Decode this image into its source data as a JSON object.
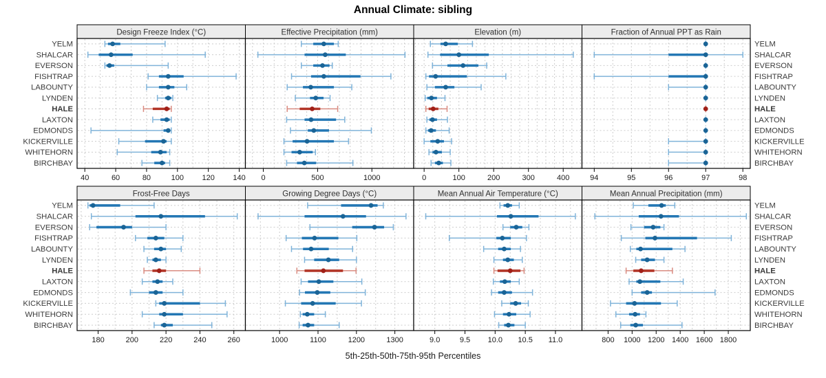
{
  "title": "Annual Climate: sibling",
  "footer": "5th-25th-50th-75th-95th Percentiles",
  "sites": [
    "YELM",
    "SHALCAR",
    "EVERSON",
    "FISHTRAP",
    "LABOUNTY",
    "LYNDEN",
    "HALE",
    "LAXTON",
    "EDMONDS",
    "KICKERVILLE",
    "WHITEHORN",
    "BIRCHBAY"
  ],
  "highlight_site": "HALE",
  "colors": {
    "blue_dot": "#1a6496",
    "blue_box": "#2377b4",
    "blue_whisker": "#7fb3d9",
    "red_dot": "#a02018",
    "red_box": "#b23527",
    "red_whisker": "#d98b80",
    "grid": "#cccccc",
    "header_bg": "#ececec",
    "header_text": "#303030",
    "site_label": "#3a3a3a",
    "tick_label": "#1a1a1a",
    "border": "#000000"
  },
  "chart_data": [
    {
      "type": "percentile_intervals",
      "id": "design-freeze-index",
      "row": 0,
      "col": 0,
      "title": "Design Freeze Index (°C)",
      "percentiles": [
        5,
        25,
        50,
        75,
        95
      ],
      "xlim": [
        35,
        144
      ],
      "ticks": [
        40,
        60,
        80,
        100,
        120,
        140
      ],
      "tick_labels": [
        "40",
        "60",
        "80",
        "100",
        "120",
        "140"
      ],
      "grid_step": 10,
      "values": {
        "YELM": [
          53,
          55,
          58,
          63,
          92
        ],
        "SHALCAR": [
          42,
          49,
          57,
          71,
          118
        ],
        "EVERSON": [
          53,
          54,
          56,
          59,
          94
        ],
        "FISHTRAP": [
          81,
          88,
          94,
          104,
          138
        ],
        "LABOUNTY": [
          80,
          88,
          94,
          98,
          106
        ],
        "LYNDEN": [
          87,
          92,
          94,
          96,
          97
        ],
        "HALE": [
          78,
          84,
          93,
          95,
          96
        ],
        "LAXTON": [
          84,
          89,
          93,
          95,
          96
        ],
        "EDMONDS": [
          44,
          91,
          94,
          95,
          96
        ],
        "KICKERVILLE": [
          62,
          79,
          91,
          93,
          96
        ],
        "WHITEHORN": [
          61,
          83,
          89,
          93,
          95
        ],
        "BIRCHBAY": [
          77,
          85,
          90,
          92,
          95
        ]
      }
    },
    {
      "type": "percentile_intervals",
      "id": "effective-precipitation",
      "row": 0,
      "col": 1,
      "title": "Effective Precipitation (mm)",
      "percentiles": [
        5,
        25,
        50,
        75,
        95
      ],
      "xlim": [
        -165,
        1385
      ],
      "ticks": [
        0,
        500,
        1000
      ],
      "tick_labels": [
        "0",
        "500",
        "1000"
      ],
      "grid_step": 100,
      "values": {
        "YELM": [
          350,
          460,
          557,
          650,
          690
        ],
        "SHALCAR": [
          -50,
          380,
          570,
          760,
          1305
        ],
        "EVERSON": [
          350,
          460,
          545,
          610,
          635
        ],
        "FISHTRAP": [
          260,
          440,
          557,
          895,
          1175
        ],
        "LABOUNTY": [
          220,
          365,
          437,
          650,
          815
        ],
        "LYNDEN": [
          295,
          430,
          483,
          555,
          615
        ],
        "HALE": [
          220,
          335,
          450,
          525,
          685
        ],
        "LAXTON": [
          215,
          380,
          440,
          670,
          750
        ],
        "EDMONDS": [
          250,
          410,
          465,
          605,
          995
        ],
        "KICKERVILLE": [
          190,
          270,
          403,
          650,
          785
        ],
        "WHITEHORN": [
          190,
          260,
          335,
          455,
          480
        ],
        "BIRCHBAY": [
          215,
          310,
          378,
          487,
          825
        ]
      }
    },
    {
      "type": "percentile_intervals",
      "id": "elevation",
      "row": 0,
      "col": 2,
      "title": "Elevation (m)",
      "percentiles": [
        5,
        25,
        50,
        75,
        95
      ],
      "xlim": [
        -30,
        454
      ],
      "ticks": [
        0,
        100,
        200,
        300,
        400
      ],
      "tick_labels": [
        "0",
        "100",
        "200",
        "300",
        "400"
      ],
      "grid_step": 25,
      "values": {
        "YELM": [
          18,
          47,
          62,
          97,
          139
        ],
        "SHALCAR": [
          11,
          46,
          100,
          186,
          429
        ],
        "EVERSON": [
          24,
          67,
          112,
          156,
          180
        ],
        "FISHTRAP": [
          5,
          14,
          33,
          123,
          235
        ],
        "LABOUNTY": [
          8,
          31,
          62,
          87,
          164
        ],
        "LYNDEN": [
          3,
          9,
          21,
          37,
          60
        ],
        "HALE": [
          5,
          13,
          26,
          41,
          66
        ],
        "LAXTON": [
          8,
          15,
          24,
          37,
          67
        ],
        "EDMONDS": [
          5,
          11,
          20,
          34,
          72
        ],
        "KICKERVILLE": [
          0,
          18,
          39,
          57,
          79
        ],
        "WHITEHORN": [
          14,
          24,
          34,
          51,
          75
        ],
        "BIRCHBAY": [
          20,
          31,
          42,
          54,
          77
        ]
      }
    },
    {
      "type": "percentile_intervals",
      "id": "fraction-ppt-rain",
      "row": 0,
      "col": 3,
      "title": "Fraction of Annual PPT as Rain",
      "percentiles": [
        5,
        25,
        50,
        75,
        95
      ],
      "xlim": [
        93.67,
        98.2
      ],
      "ticks": [
        94,
        95,
        96,
        97,
        98
      ],
      "tick_labels": [
        "94",
        "95",
        "96",
        "97",
        "98"
      ],
      "grid_step": 0.5,
      "values": {
        "YELM": [
          97,
          97,
          97,
          97,
          97
        ],
        "SHALCAR": [
          94,
          96,
          97,
          97,
          98
        ],
        "EVERSON": [
          97,
          97,
          97,
          97,
          97
        ],
        "FISHTRAP": [
          94,
          96,
          97,
          97,
          97
        ],
        "LABOUNTY": [
          96,
          97,
          97,
          97,
          97
        ],
        "LYNDEN": [
          97,
          97,
          97,
          97,
          97
        ],
        "HALE": [
          97,
          97,
          97,
          97,
          97
        ],
        "LAXTON": [
          97,
          97,
          97,
          97,
          97
        ],
        "EDMONDS": [
          97,
          97,
          97,
          97,
          97
        ],
        "KICKERVILLE": [
          96,
          97,
          97,
          97,
          97
        ],
        "WHITEHORN": [
          96,
          97,
          97,
          97,
          97
        ],
        "BIRCHBAY": [
          96,
          97,
          97,
          97,
          97
        ]
      }
    },
    {
      "type": "percentile_intervals",
      "id": "frost-free-days",
      "row": 1,
      "col": 0,
      "title": "Frost-Free Days",
      "percentiles": [
        5,
        25,
        50,
        75,
        95
      ],
      "xlim": [
        167.6,
        266.8
      ],
      "ticks": [
        180,
        200,
        220,
        240,
        260
      ],
      "tick_labels": [
        "180",
        "200",
        "220",
        "240",
        "260"
      ],
      "grid_step": 10,
      "values": {
        "YELM": [
          174,
          175,
          177,
          193,
          213
        ],
        "SHALCAR": [
          176,
          202,
          217,
          243,
          262
        ],
        "EVERSON": [
          175,
          179,
          195,
          200,
          220
        ],
        "FISHTRAP": [
          202,
          209,
          214,
          219,
          230
        ],
        "LABOUNTY": [
          207,
          213,
          217,
          220,
          229
        ],
        "LYNDEN": [
          209,
          212,
          214,
          217,
          220
        ],
        "HALE": [
          207,
          212,
          216,
          220,
          240
        ],
        "LAXTON": [
          206,
          212,
          215,
          218,
          224
        ],
        "EDMONDS": [
          199,
          210,
          214,
          218,
          230
        ],
        "KICKERVILLE": [
          214,
          216,
          219,
          240,
          255
        ],
        "WHITEHORN": [
          206,
          216,
          219,
          230,
          256
        ],
        "BIRCHBAY": [
          213,
          217,
          219,
          224,
          247
        ]
      }
    },
    {
      "type": "percentile_intervals",
      "id": "growing-degree-days",
      "row": 1,
      "col": 1,
      "title": "Growing Degree Days (°C)",
      "percentiles": [
        5,
        25,
        50,
        75,
        95
      ],
      "xlim": [
        911,
        1349
      ],
      "ticks": [
        1000,
        1100,
        1200,
        1300
      ],
      "tick_labels": [
        "1000",
        "1100",
        "1200",
        "1300"
      ],
      "grid_step": 50,
      "values": {
        "YELM": [
          1073,
          1160,
          1238,
          1255,
          1270
        ],
        "SHALCAR": [
          944,
          1065,
          1165,
          1225,
          1329
        ],
        "EVERSON": [
          1079,
          1189,
          1247,
          1272,
          1296
        ],
        "FISHTRAP": [
          1017,
          1058,
          1091,
          1153,
          1201
        ],
        "LABOUNTY": [
          1031,
          1061,
          1082,
          1128,
          1190
        ],
        "LYNDEN": [
          1065,
          1090,
          1127,
          1155,
          1200
        ],
        "HALE": [
          1045,
          1065,
          1114,
          1165,
          1199
        ],
        "LAXTON": [
          1056,
          1074,
          1102,
          1140,
          1214
        ],
        "EDMONDS": [
          1052,
          1066,
          1098,
          1132,
          1223
        ],
        "KICKERVILLE": [
          1015,
          1056,
          1086,
          1146,
          1213
        ],
        "WHITEHORN": [
          1054,
          1060,
          1072,
          1090,
          1119
        ],
        "BIRCHBAY": [
          1051,
          1060,
          1074,
          1090,
          1155
        ]
      }
    },
    {
      "type": "percentile_intervals",
      "id": "mean-annual-air-temperature",
      "row": 1,
      "col": 2,
      "title": "Mean Annual Air Temperature (°C)",
      "percentiles": [
        5,
        25,
        50,
        75,
        95
      ],
      "xlim": [
        8.65,
        11.44
      ],
      "ticks": [
        9.0,
        9.5,
        10.0,
        10.5,
        11.0
      ],
      "tick_labels": [
        "9.0",
        "9.5",
        "10.0",
        "10.5",
        "11.0"
      ],
      "grid_step": 0.25,
      "values": {
        "YELM": [
          10.08,
          10.14,
          10.21,
          10.28,
          10.4
        ],
        "SHALCAR": [
          8.85,
          10.03,
          10.26,
          10.72,
          11.33
        ],
        "EVERSON": [
          10.13,
          10.25,
          10.35,
          10.45,
          10.56
        ],
        "FISHTRAP": [
          9.24,
          10.02,
          10.12,
          10.26,
          10.52
        ],
        "LABOUNTY": [
          9.81,
          10.05,
          10.15,
          10.26,
          10.42
        ],
        "LYNDEN": [
          9.98,
          10.13,
          10.21,
          10.31,
          10.45
        ],
        "HALE": [
          9.98,
          10.04,
          10.25,
          10.42,
          10.48
        ],
        "LAXTON": [
          9.97,
          10.08,
          10.16,
          10.26,
          10.4
        ],
        "EDMONDS": [
          9.94,
          10.05,
          10.15,
          10.28,
          10.62
        ],
        "KICKERVILLE": [
          10.11,
          10.25,
          10.34,
          10.43,
          10.55
        ],
        "WHITEHORN": [
          9.99,
          10.13,
          10.23,
          10.35,
          10.58
        ],
        "BIRCHBAY": [
          10.06,
          10.15,
          10.22,
          10.32,
          10.5
        ]
      }
    },
    {
      "type": "percentile_intervals",
      "id": "mean-annual-precipitation",
      "row": 1,
      "col": 3,
      "title": "Mean Annual Precipitation (mm)",
      "percentiles": [
        5,
        25,
        50,
        75,
        95
      ],
      "xlim": [
        583,
        1983
      ],
      "ticks": [
        800,
        1000,
        1200,
        1400,
        1600,
        1800
      ],
      "tick_labels": [
        "800",
        "1000",
        "1200",
        "1400",
        "1600",
        "1800"
      ],
      "grid_step": 100,
      "values": {
        "YELM": [
          1010,
          1135,
          1245,
          1280,
          1355
        ],
        "SHALCAR": [
          690,
          1055,
          1240,
          1390,
          1950
        ],
        "EVERSON": [
          990,
          1100,
          1175,
          1235,
          1265
        ],
        "FISHTRAP": [
          910,
          1110,
          1190,
          1540,
          1825
        ],
        "LABOUNTY": [
          985,
          1035,
          1070,
          1335,
          1440
        ],
        "LYNDEN": [
          1030,
          1075,
          1125,
          1190,
          1265
        ],
        "HALE": [
          950,
          1010,
          1075,
          1185,
          1335
        ],
        "LAXTON": [
          975,
          1035,
          1065,
          1235,
          1425
        ],
        "EDMONDS": [
          1000,
          1075,
          1125,
          1165,
          1690
        ],
        "KICKERVILLE": [
          820,
          950,
          1020,
          1240,
          1375
        ],
        "WHITEHORN": [
          865,
          975,
          1025,
          1065,
          1115
        ],
        "BIRCHBAY": [
          905,
          985,
          1030,
          1090,
          1415
        ]
      }
    }
  ]
}
